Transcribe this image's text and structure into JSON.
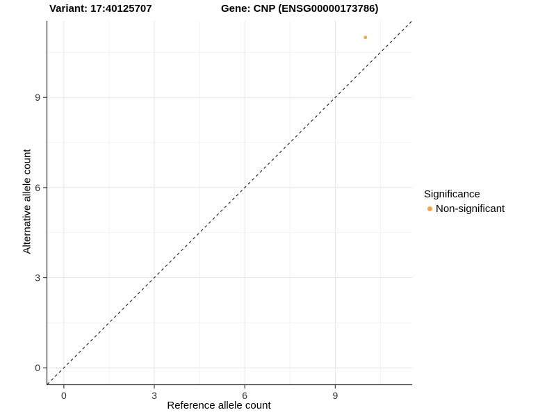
{
  "chart_data": {
    "type": "scatter",
    "title_variant": "Variant: 17:40125707",
    "title_gene": "Gene: CNP (ENSG00000173786)",
    "xlabel": "Reference allele count",
    "ylabel": "Alternative allele count",
    "xlim": [
      -0.55,
      11.55
    ],
    "ylim": [
      -0.55,
      11.55
    ],
    "xticks": [
      0,
      3,
      6,
      9
    ],
    "yticks": [
      0,
      3,
      6,
      9
    ],
    "minor_ticks": [
      1.5,
      4.5,
      7.5,
      10.5
    ],
    "grid": "major+minor",
    "identity_line": {
      "slope": 1,
      "intercept": 0,
      "style": "dashed"
    },
    "series": [
      {
        "name": "Non-significant",
        "color": "#FAA43A",
        "points": [
          {
            "x": 10,
            "y": 11
          }
        ]
      }
    ],
    "legend": {
      "title": "Significance",
      "position": "right",
      "entries": [
        {
          "label": "Non-significant",
          "color": "#FAA43A"
        }
      ]
    },
    "style": {
      "panel_bg": "#FFFFFF",
      "grid_major_color": "#E5E5E5",
      "grid_minor_color": "#F2F2F2",
      "axis_line_color": "#3C3C3C",
      "tick_color": "#3C3C3C",
      "tick_label_color": "#333333",
      "identity_line_color": "#1A1A1A"
    }
  }
}
